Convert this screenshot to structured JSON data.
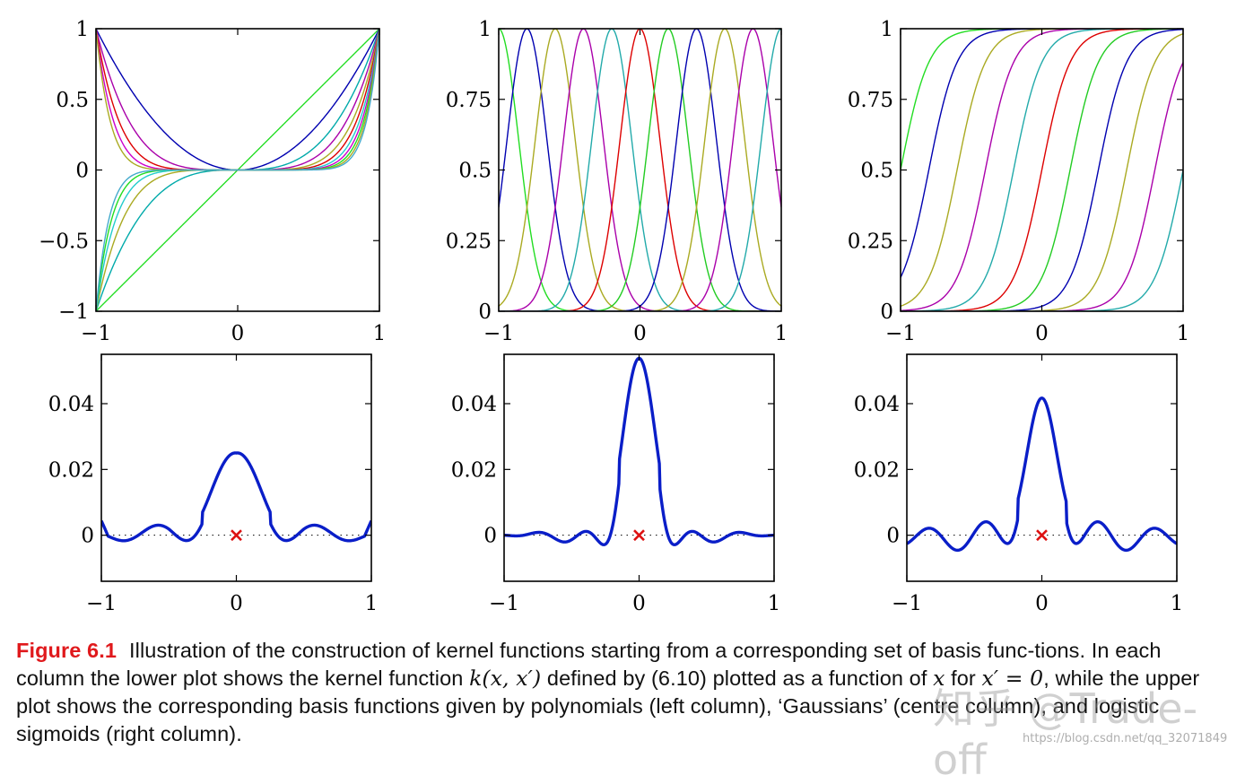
{
  "chart_data": [
    {
      "id": "poly",
      "type": "line",
      "series_description": "polynomial basis functions x^1 ... x^11 on [-1,1]",
      "x_range": [
        -1,
        1
      ],
      "ylim": [
        -1,
        1
      ],
      "x_ticks": [
        "−1",
        "0",
        "1"
      ],
      "y_ticks": [
        "−1",
        "−0.5",
        "0",
        "0.5",
        "1"
      ],
      "series": [
        {
          "power": 1,
          "color": "#22dd22"
        },
        {
          "power": 2,
          "color": "#0000b0"
        },
        {
          "power": 3,
          "color": "#00aaaa"
        },
        {
          "power": 4,
          "color": "#aa00aa"
        },
        {
          "power": 5,
          "color": "#aaaa22"
        },
        {
          "power": 6,
          "color": "#dd0000"
        },
        {
          "power": 7,
          "color": "#22cccc"
        },
        {
          "power": 8,
          "color": "#cc00cc"
        },
        {
          "power": 9,
          "color": "#22dd22"
        },
        {
          "power": 10,
          "color": "#aaaa22"
        },
        {
          "power": 11,
          "color": "#44aacc"
        }
      ]
    },
    {
      "id": "gauss",
      "type": "line",
      "series_description": "Gaussian basis functions exp(-(x-mu)^2/(2s^2)), s = 0.1414",
      "x_range": [
        -1,
        1
      ],
      "ylim": [
        0,
        1
      ],
      "x_ticks": [
        "−1",
        "0",
        "1"
      ],
      "y_ticks": [
        "0",
        "0.25",
        "0.5",
        "0.75",
        "1"
      ],
      "width": 0.1414,
      "series": [
        {
          "center": -1.0,
          "color": "#22dd22"
        },
        {
          "center": -0.8,
          "color": "#0000b0"
        },
        {
          "center": -0.6,
          "color": "#aaaa22"
        },
        {
          "center": -0.4,
          "color": "#aa00aa"
        },
        {
          "center": -0.2,
          "color": "#22aaaa"
        },
        {
          "center": 0.0,
          "color": "#dd0000"
        },
        {
          "center": 0.2,
          "color": "#22cc22"
        },
        {
          "center": 0.4,
          "color": "#0000b0"
        },
        {
          "center": 0.6,
          "color": "#aaaa22"
        },
        {
          "center": 0.8,
          "color": "#aa00aa"
        },
        {
          "center": 1.0,
          "color": "#22aaaa"
        }
      ]
    },
    {
      "id": "sigm",
      "type": "line",
      "series_description": "logistic sigmoid basis functions 1/(1+exp(-(x-mu)/s)), s = 0.1",
      "x_range": [
        -1,
        1
      ],
      "ylim": [
        0,
        1
      ],
      "x_ticks": [
        "−1",
        "0",
        "1"
      ],
      "y_ticks": [
        "0",
        "0.25",
        "0.5",
        "0.75",
        "1"
      ],
      "scale": 0.1,
      "series": [
        {
          "center": -1.0,
          "color": "#22dd22"
        },
        {
          "center": -0.8,
          "color": "#0000b0"
        },
        {
          "center": -0.6,
          "color": "#aaaa22"
        },
        {
          "center": -0.4,
          "color": "#aa00aa"
        },
        {
          "center": -0.2,
          "color": "#22aaaa"
        },
        {
          "center": 0.0,
          "color": "#dd0000"
        },
        {
          "center": 0.2,
          "color": "#22cc22"
        },
        {
          "center": 0.4,
          "color": "#0000b0"
        },
        {
          "center": 0.6,
          "color": "#aaaa22"
        },
        {
          "center": 0.8,
          "color": "#aa00aa"
        },
        {
          "center": 1.0,
          "color": "#22aaaa"
        }
      ]
    },
    {
      "id": "kpoly",
      "type": "line",
      "series_description": "kernel k(x, x'=0) for the polynomial basis",
      "x_range": [
        -1,
        1
      ],
      "ylim": [
        -0.014,
        0.055
      ],
      "x_ticks": [
        "−1",
        "0",
        "1"
      ],
      "y_ticks": [
        "0",
        "0.02",
        "0.04"
      ],
      "peak": 0.0265,
      "line_color": "#0a1ec8",
      "marker": {
        "x": 0,
        "y": 0,
        "symbol": "x",
        "color": "#dd1111"
      }
    },
    {
      "id": "kgauss",
      "type": "line",
      "series_description": "kernel k(x, x'=0) for the Gaussian basis",
      "x_range": [
        -1,
        1
      ],
      "ylim": [
        -0.014,
        0.055
      ],
      "x_ticks": [
        "−1",
        "0",
        "1"
      ],
      "y_ticks": [
        "0",
        "0.02",
        "0.04"
      ],
      "peak": 0.055,
      "line_color": "#0a1ec8",
      "marker": {
        "x": 0,
        "y": 0,
        "symbol": "x",
        "color": "#dd1111"
      }
    },
    {
      "id": "ksigm",
      "type": "line",
      "series_description": "kernel k(x, x'=0) for the sigmoid basis",
      "x_range": [
        -1,
        1
      ],
      "ylim": [
        -0.014,
        0.055
      ],
      "x_ticks": [
        "−1",
        "0",
        "1"
      ],
      "y_ticks": [
        "0",
        "0.02",
        "0.04"
      ],
      "peak": 0.0425,
      "line_color": "#0a1ec8",
      "marker": {
        "x": 0,
        "y": 0,
        "symbol": "x",
        "color": "#dd1111"
      }
    }
  ],
  "caption": {
    "label": "Figure 6.1",
    "part1": "Illustration of the construction of kernel functions starting from a corresponding set of basis func-tions. In each column the lower plot shows the kernel function ",
    "math1": "k(x, x′)",
    "part2": " defined by (6.10) plotted as a function of ",
    "math2": "x",
    "part3": " for ",
    "math3": "x′ = 0",
    "part4": ", while the upper plot shows the corresponding basis functions given by polynomials (left column), ‘Gaussians’ (centre column), and logistic sigmoids (right column)."
  },
  "watermark": {
    "text": "知乎 @Trade-off",
    "url": "https://blog.csdn.net/qq_32071849"
  }
}
